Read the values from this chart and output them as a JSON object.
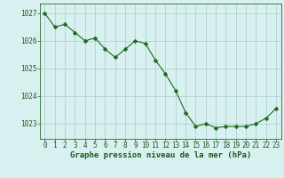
{
  "x": [
    0,
    1,
    2,
    3,
    4,
    5,
    6,
    7,
    8,
    9,
    10,
    11,
    12,
    13,
    14,
    15,
    16,
    17,
    18,
    19,
    20,
    21,
    22,
    23
  ],
  "y": [
    1027.0,
    1026.5,
    1026.6,
    1026.3,
    1026.0,
    1026.1,
    1025.7,
    1025.4,
    1025.7,
    1026.0,
    1025.9,
    1025.3,
    1024.8,
    1024.2,
    1023.4,
    1022.9,
    1023.0,
    1022.85,
    1022.9,
    1022.9,
    1022.9,
    1023.0,
    1023.2,
    1023.55
  ],
  "line_color": "#1a6b1a",
  "marker": "D",
  "marker_size": 2.5,
  "background_color": "#d9f0f0",
  "grid_color": "#a8cccc",
  "axis_color": "#2a6b2a",
  "tick_label_color": "#1a5c1a",
  "xlabel": "Graphe pression niveau de la mer (hPa)",
  "xlabel_color": "#1a5c1a",
  "xlabel_fontsize": 6.5,
  "tick_fontsize": 5.5,
  "ytick_labels": [
    "1023",
    "1024",
    "1025",
    "1026",
    "1027"
  ],
  "ytick_values": [
    1023,
    1024,
    1025,
    1026,
    1027
  ],
  "ylim": [
    1022.45,
    1027.35
  ],
  "xlim": [
    -0.5,
    23.5
  ],
  "xtick_labels": [
    "0",
    "1",
    "2",
    "3",
    "4",
    "5",
    "6",
    "7",
    "8",
    "9",
    "10",
    "11",
    "12",
    "13",
    "14",
    "15",
    "16",
    "17",
    "18",
    "19",
    "20",
    "21",
    "22",
    "23"
  ]
}
